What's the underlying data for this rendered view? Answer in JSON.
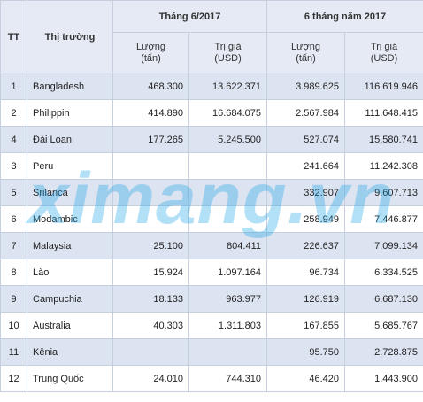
{
  "table": {
    "header": {
      "tt": "TT",
      "market": "Thị trường",
      "groups": [
        "Tháng 6/2017",
        "6 tháng năm 2017"
      ],
      "subheaders": [
        {
          "label": "Lượng",
          "unit": "(tấn)"
        },
        {
          "label": "Trị giá",
          "unit": "(USD)"
        },
        {
          "label": "Lượng",
          "unit": "(tấn)"
        },
        {
          "label": "Trị giá",
          "unit": "(USD)"
        }
      ]
    },
    "rows": [
      [
        "1",
        "Bangladesh",
        "468.300",
        "13.622.371",
        "3.989.625",
        "116.619.946"
      ],
      [
        "2",
        "Philippin",
        "414.890",
        "16.684.075",
        "2.567.984",
        "111.648.415"
      ],
      [
        "4",
        "Đài Loan",
        "177.265",
        "5.245.500",
        "527.074",
        "15.580.741"
      ],
      [
        "3",
        "Peru",
        null,
        null,
        "241.664",
        "11.242.308"
      ],
      [
        "5",
        "Srilanca",
        null,
        null,
        "332.907",
        "9.607.713"
      ],
      [
        "6",
        "Modambic",
        null,
        null,
        "258.949",
        "7.446.877"
      ],
      [
        "7",
        "Malaysia",
        "25.100",
        "804.411",
        "226.637",
        "7.099.134"
      ],
      [
        "8",
        "Lào",
        "15.924",
        "1.097.164",
        "96.734",
        "6.334.525"
      ],
      [
        "9",
        "Campuchia",
        "18.133",
        "963.977",
        "126.919",
        "6.687.130"
      ],
      [
        "10",
        "Australia",
        "40.303",
        "1.311.803",
        "167.855",
        "5.685.767"
      ],
      [
        "11",
        "Kênia",
        null,
        null,
        "95.750",
        "2.728.875"
      ],
      [
        "12",
        "Trung Quốc",
        "24.010",
        "744.310",
        "46.420",
        "1.443.900"
      ]
    ],
    "watermark": "ximang.vn"
  }
}
